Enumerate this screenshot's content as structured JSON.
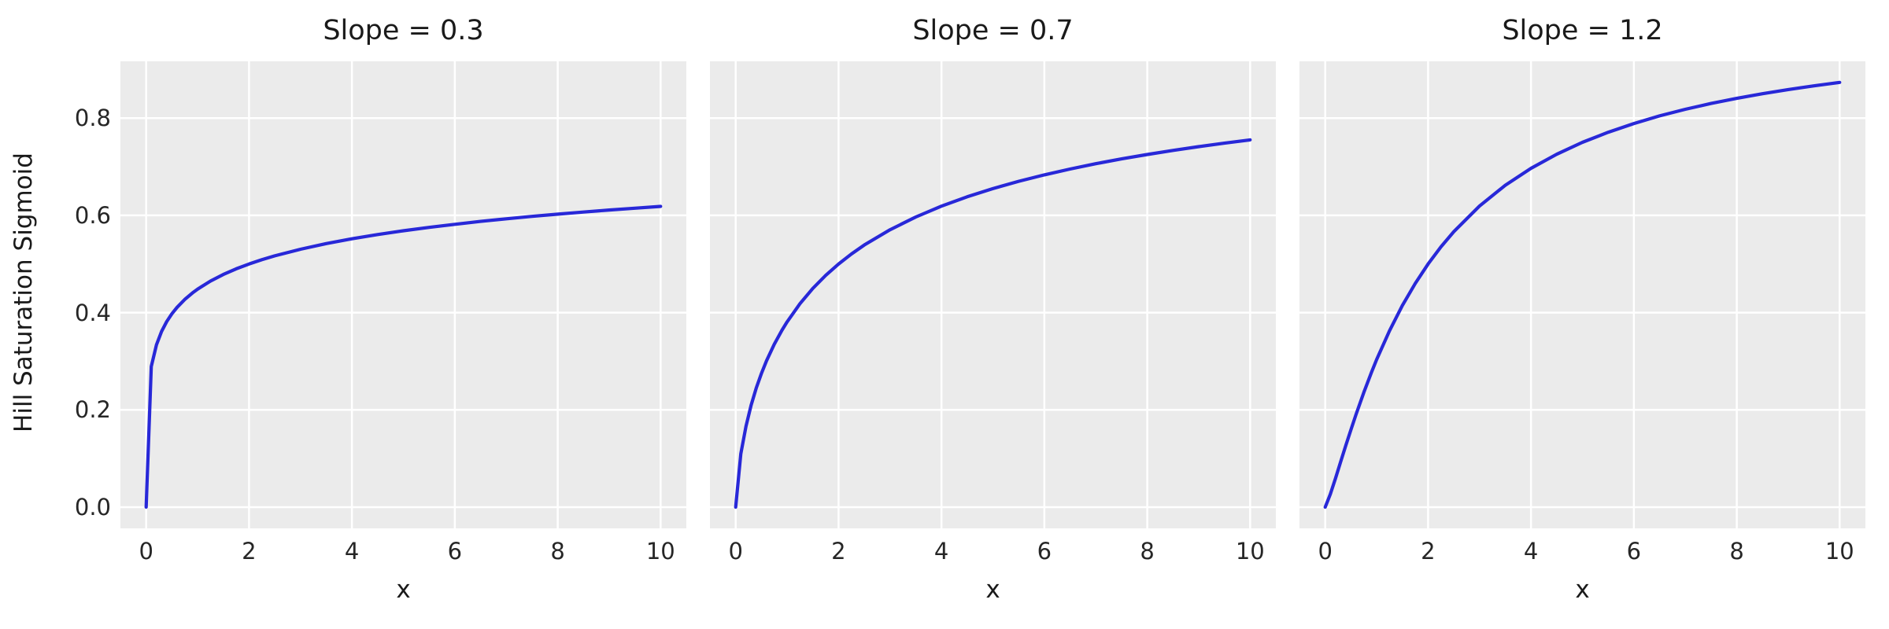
{
  "figure": {
    "background": "#ffffff",
    "panel_background": "#ebebeb",
    "grid_color": "#ffffff",
    "line_color": "#2828d8",
    "title_color": "#1a1a1a",
    "tick_color": "#262626"
  },
  "chart_data": [
    {
      "type": "line",
      "title": "Slope = 0.3",
      "xlabel": "x",
      "ylabel": "Hill Saturation Sigmoid",
      "xlim": [
        -0.5,
        10.5
      ],
      "ylim": [
        -0.0437,
        0.9168
      ],
      "xticks": [
        0,
        2,
        4,
        6,
        8,
        10
      ],
      "xtick_labels": [
        "0",
        "2",
        "4",
        "6",
        "8",
        "10"
      ],
      "yticks": [
        0,
        0.2,
        0.4,
        0.6,
        0.8
      ],
      "ytick_labels": [
        "0.0",
        "0.2",
        "0.4",
        "0.6",
        "0.8"
      ],
      "show_ytick_labels": true,
      "grid": true,
      "series": [
        {
          "name": "hill_saturation_slope_0.3",
          "x": [
            0,
            0.1,
            0.2,
            0.3,
            0.4,
            0.5,
            0.6,
            0.75,
            0.9,
            1,
            1.25,
            1.5,
            1.75,
            2,
            2.25,
            2.5,
            3,
            3.5,
            4,
            4.5,
            5,
            5.5,
            6,
            6.5,
            7,
            7.5,
            8,
            8.5,
            9,
            9.5,
            10
          ],
          "y": [
            0,
            0.2893,
            0.3339,
            0.3614,
            0.3816,
            0.3975,
            0.4107,
            0.427,
            0.4404,
            0.4482,
            0.4648,
            0.4784,
            0.49,
            0.5,
            0.5089,
            0.5167,
            0.5304,
            0.5419,
            0.5518,
            0.5605,
            0.5683,
            0.5753,
            0.5816,
            0.5875,
            0.5929,
            0.5979,
            0.6025,
            0.6069,
            0.611,
            0.6148,
            0.6184
          ]
        }
      ]
    },
    {
      "type": "line",
      "title": "Slope = 0.7",
      "xlabel": "x",
      "ylabel": "",
      "xlim": [
        -0.5,
        10.5
      ],
      "ylim": [
        -0.0437,
        0.9168
      ],
      "xticks": [
        0,
        2,
        4,
        6,
        8,
        10
      ],
      "xtick_labels": [
        "0",
        "2",
        "4",
        "6",
        "8",
        "10"
      ],
      "yticks": [
        0,
        0.2,
        0.4,
        0.6,
        0.8
      ],
      "ytick_labels": [
        "0.0",
        "0.2",
        "0.4",
        "0.6",
        "0.8"
      ],
      "show_ytick_labels": false,
      "grid": true,
      "series": [
        {
          "name": "hill_saturation_slope_0.7",
          "x": [
            0,
            0.1,
            0.2,
            0.3,
            0.4,
            0.5,
            0.6,
            0.75,
            0.9,
            1,
            1.25,
            1.5,
            1.75,
            2,
            2.25,
            2.5,
            3,
            3.5,
            4,
            4.5,
            5,
            5.5,
            6,
            6.5,
            7,
            7.5,
            8,
            8.5,
            9,
            9.5,
            10
          ],
          "y": [
            0,
            0.1094,
            0.1663,
            0.2095,
            0.2448,
            0.2748,
            0.301,
            0.3348,
            0.3638,
            0.381,
            0.4185,
            0.4498,
            0.4766,
            0.5,
            0.5206,
            0.539,
            0.5705,
            0.5967,
            0.619,
            0.6382,
            0.655,
            0.67,
            0.6833,
            0.6953,
            0.7062,
            0.7161,
            0.7252,
            0.7336,
            0.7413,
            0.7485,
            0.7552
          ]
        }
      ]
    },
    {
      "type": "line",
      "title": "Slope = 1.2",
      "xlabel": "x",
      "ylabel": "",
      "xlim": [
        -0.5,
        10.5
      ],
      "ylim": [
        -0.0437,
        0.9168
      ],
      "xticks": [
        0,
        2,
        4,
        6,
        8,
        10
      ],
      "xtick_labels": [
        "0",
        "2",
        "4",
        "6",
        "8",
        "10"
      ],
      "yticks": [
        0,
        0.2,
        0.4,
        0.6,
        0.8
      ],
      "ytick_labels": [
        "0.0",
        "0.2",
        "0.4",
        "0.6",
        "0.8"
      ],
      "show_ytick_labels": false,
      "grid": true,
      "series": [
        {
          "name": "hill_saturation_slope_1.2",
          "x": [
            0,
            0.1,
            0.2,
            0.3,
            0.4,
            0.5,
            0.6,
            0.75,
            0.9,
            1,
            1.25,
            1.5,
            1.75,
            2,
            2.25,
            2.5,
            3,
            3.5,
            4,
            4.5,
            5,
            5.5,
            6,
            6.5,
            7,
            7.5,
            8,
            8.5,
            9,
            9.5,
            10
          ],
          "y": [
            0,
            0.0267,
            0.0593,
            0.0931,
            0.1266,
            0.1593,
            0.1908,
            0.2356,
            0.2772,
            0.3033,
            0.3626,
            0.4146,
            0.46,
            0.5,
            0.5353,
            0.5666,
            0.6193,
            0.6619,
            0.6967,
            0.7257,
            0.7502,
            0.771,
            0.7889,
            0.8045,
            0.8181,
            0.8301,
            0.8407,
            0.8502,
            0.8588,
            0.8664,
            0.8734
          ]
        }
      ]
    }
  ]
}
